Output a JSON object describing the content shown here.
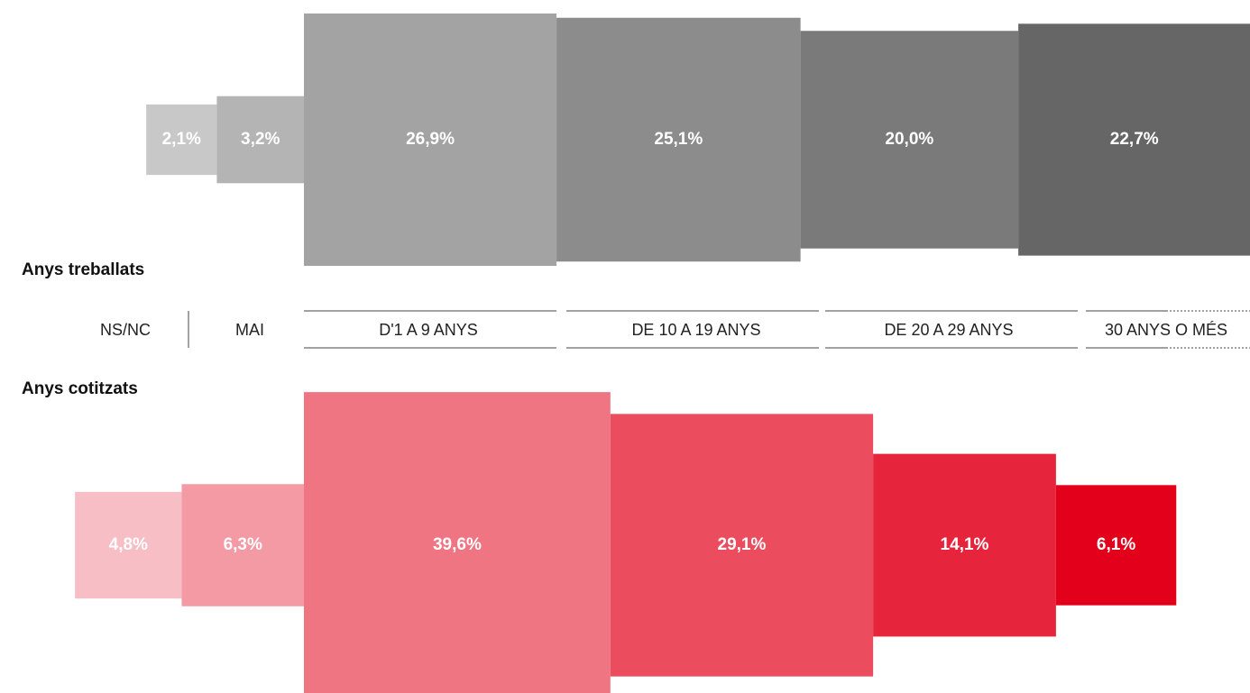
{
  "chart_data": {
    "type": "squares",
    "categories": [
      "NS/NC",
      "MAI",
      "D'1 A 9 ANYS",
      "DE 10 A 19 ANYS",
      "DE 20 A 29 ANYS",
      "30 ANYS O MÉS"
    ],
    "series": [
      {
        "name": "Anys treballats",
        "colors": [
          "#c8c8c8",
          "#b4b4b4",
          "#a3a3a3",
          "#8c8c8c",
          "#7a7a7a",
          "#666666"
        ],
        "values": [
          2.1,
          3.2,
          26.9,
          25.1,
          20.0,
          22.7
        ],
        "value_labels": [
          "2,1%",
          "3,2%",
          "26,9%",
          "25,1%",
          "20,0%",
          "22,7%"
        ]
      },
      {
        "name": "Anys cotitzats",
        "colors": [
          "#f7bec6",
          "#f39aa4",
          "#f07583",
          "#eb4c5e",
          "#e6253d",
          "#e2001a"
        ],
        "values": [
          4.8,
          6.3,
          39.6,
          29.1,
          14.1,
          6.1
        ],
        "value_labels": [
          "4,8%",
          "6,3%",
          "39,6%",
          "29,1%",
          "14,1%",
          "6,1%"
        ]
      }
    ]
  }
}
